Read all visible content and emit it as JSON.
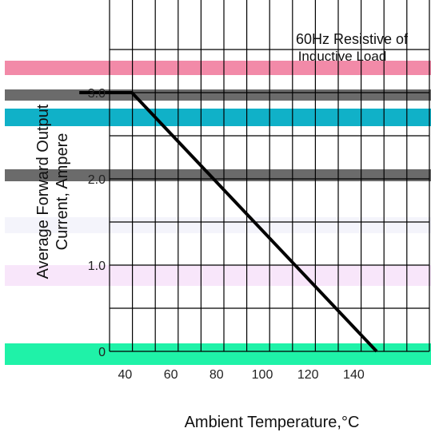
{
  "chart_data": {
    "type": "line",
    "title": "",
    "annotation": [
      "60Hz Resistive of",
      "Inductive Load"
    ],
    "xlabel": "Ambient Temperature,°C",
    "ylabel": [
      "Average Forward Output",
      "Current, Ampere"
    ],
    "xlim": [
      20,
      150
    ],
    "ylim": [
      0,
      3.5
    ],
    "x_ticks": [
      40,
      60,
      80,
      100,
      120,
      140
    ],
    "y_ticks": [
      0,
      1.0,
      2.0,
      3.0
    ],
    "y_tick_labels": [
      "0",
      "1.0",
      "2.0",
      "3.0"
    ],
    "grid": true,
    "series": [
      {
        "x": [
          20,
          43,
          150
        ],
        "y": [
          3.0,
          3.0,
          0
        ]
      }
    ],
    "colors": {
      "band_pink": "#f28aa8",
      "band_gray": "#6b6b6b",
      "band_cyan": "#10b1c8",
      "band_lavender": "#f4f4fb",
      "band_lightpink": "#f8e6fa",
      "band_green": "#1ff2a8",
      "line": "#000000"
    }
  }
}
